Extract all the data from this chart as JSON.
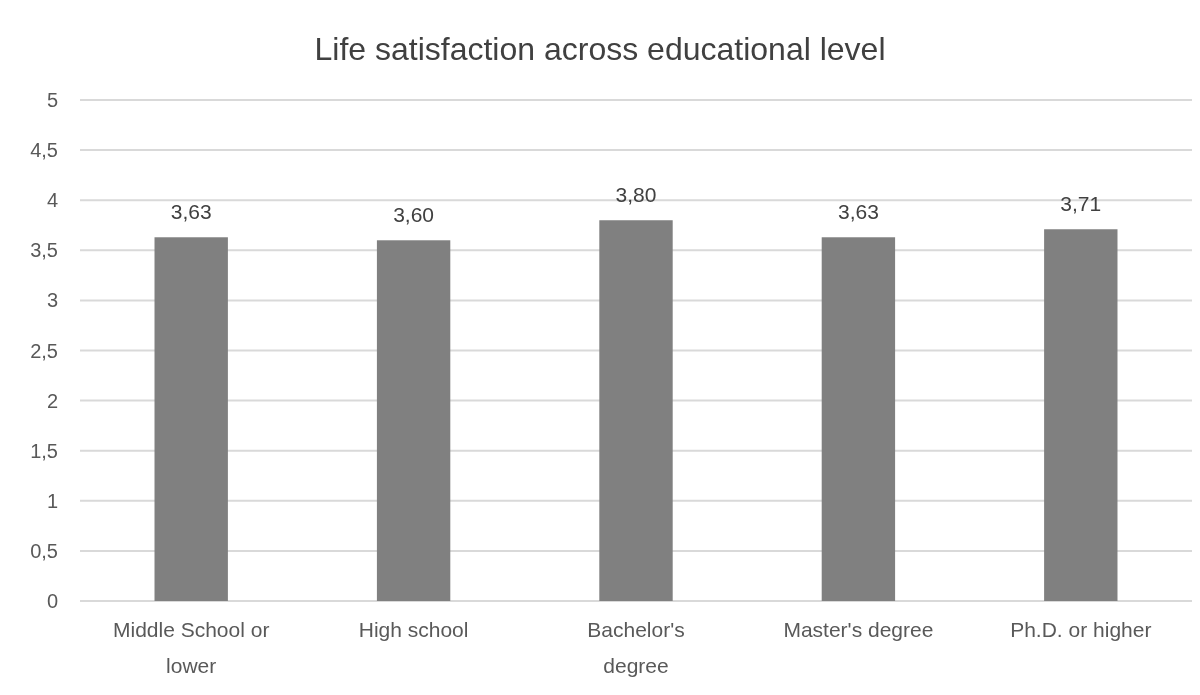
{
  "chart_data": {
    "type": "bar",
    "title": "Life satisfaction across educational level",
    "categories": [
      "Middle School or lower",
      "High school",
      "Bachelor's degree",
      "Master's degree",
      "Ph.D. or higher"
    ],
    "values": [
      3.63,
      3.6,
      3.8,
      3.63,
      3.71
    ],
    "value_labels": [
      "3,63",
      "3,60",
      "3,80",
      "3,63",
      "3,71"
    ],
    "color": "#808080",
    "ylim": [
      0,
      5
    ],
    "yticks": [
      0,
      {
        "value": 0.5,
        "label": "0,5"
      },
      1,
      {
        "value": 1.5,
        "label": "1,5"
      },
      2,
      {
        "value": 2.5,
        "label": "2,5"
      },
      3,
      {
        "value": 3.5,
        "label": "3,5"
      },
      4,
      {
        "value": 4.5,
        "label": "4,5"
      },
      5
    ],
    "grid": "y"
  }
}
